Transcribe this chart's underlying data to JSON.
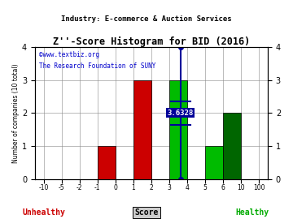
{
  "title": "Z''-Score Histogram for BID (2016)",
  "subtitle": "Industry: E-commerce & Auction Services",
  "watermark1": "©www.textbiz.org",
  "watermark2": "The Research Foundation of SUNY",
  "xlabel": "Score",
  "ylabel": "Number of companies (10 total)",
  "xlabel_unhealthy": "Unhealthy",
  "xlabel_healthy": "Healthy",
  "bid_score_label": "3.6328",
  "bid_score_index": 7.6328,
  "xtick_labels": [
    "-10",
    "-5",
    "-2",
    "-1",
    "0",
    "1",
    "2",
    "3",
    "4",
    "5",
    "6",
    "10",
    "100"
  ],
  "bar_left_indices": [
    3,
    5,
    7,
    9,
    10
  ],
  "bar_counts": [
    1,
    3,
    3,
    1,
    2
  ],
  "bar_colors": [
    "#cc0000",
    "#cc0000",
    "#00bb00",
    "#00bb00",
    "#006600"
  ],
  "background_color": "#ffffff",
  "grid_color": "#888888",
  "unhealthy_color": "#cc0000",
  "healthy_color": "#00aa00",
  "score_line_color": "#000099",
  "score_text_color": "#ffffff",
  "score_box_color": "#000099",
  "yticks": [
    0,
    1,
    2,
    3,
    4
  ],
  "ylim": [
    0,
    4
  ],
  "xlim": [
    -0.5,
    12.5
  ]
}
